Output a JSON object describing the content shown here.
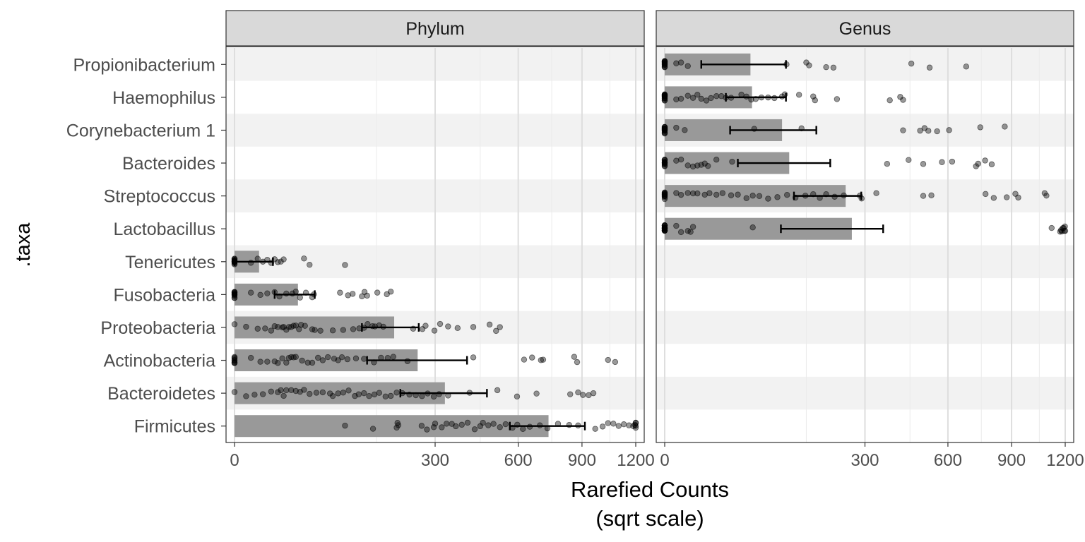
{
  "chart_data": {
    "type": "bar",
    "facet": "horizontal bar chart with jittered points and error bars",
    "xlabel": [
      "Rarefied Counts",
      "(sqrt scale)"
    ],
    "ylabel": ".taxa",
    "x_scale": "sqrt",
    "xlim": [
      0,
      1200
    ],
    "x_ticks": [
      0,
      300,
      600,
      900,
      1200
    ],
    "x_tick_labels": [
      "0",
      "300",
      "600",
      "900",
      "1200"
    ],
    "categories": [
      "Propionibacterium",
      "Haemophilus",
      "Corynebacterium 1",
      "Bacteroides",
      "Streptococcus",
      "Lactobacillus",
      "Tenericutes",
      "Fusobacteria",
      "Proteobacteria",
      "Actinobacteria",
      "Bacteroidetes",
      "Firmicutes"
    ],
    "panels": [
      {
        "name": "Phylum",
        "bars": [
          {
            "taxon": "Tenericutes",
            "mean": 4.5,
            "err": [
              0,
              11
            ],
            "points": [
              0,
              0,
              0,
              0,
              0,
              0,
              0,
              0,
              0,
              0,
              0,
              0,
              2,
              4,
              6,
              8,
              10,
              12,
              14,
              16,
              18,
              36,
              42,
              91
            ]
          },
          {
            "taxon": "Fusobacteria",
            "mean": 30,
            "err": [
              12,
              48
            ],
            "points": [
              0,
              0,
              0,
              0,
              0,
              0,
              0,
              0,
              0,
              0,
              0,
              2,
              5,
              8,
              12,
              15,
              20,
              25,
              28,
              32,
              38,
              45,
              47,
              83,
              96,
              104,
              121,
              131,
              126,
              152,
              173,
              182
            ]
          },
          {
            "taxon": "Proteobacteria",
            "mean": 190,
            "err": [
              121,
              253
            ],
            "points": [
              0,
              1,
              4,
              7,
              10,
              12,
              14,
              17,
              18,
              20,
              22,
              24,
              26,
              28,
              31,
              33,
              37,
              45,
              48,
              55,
              72,
              88,
              105,
              116,
              125,
              132,
              142,
              147,
              156,
              165,
              238,
              263,
              272,
              298,
              315,
              340,
              371,
              425,
              485,
              510,
              525
            ]
          },
          {
            "taxon": "Actinobacteria",
            "mean": 250,
            "err": [
              131,
              403
            ],
            "points": [
              0,
              0,
              0,
              0,
              0,
              0,
              0,
              0,
              2,
              5,
              8,
              12,
              14,
              17,
              20,
              22,
              24,
              26,
              28,
              34,
              40,
              45,
              52,
              58,
              65,
              74,
              80,
              86,
              95,
              110,
              125,
              145,
              160,
              175,
              188,
              223,
              425,
              625,
              660,
              700,
              710,
              860,
              875,
              1040,
              1080
            ]
          },
          {
            "taxon": "Bacteroidetes",
            "mean": 330,
            "err": [
              205,
              475
            ],
            "points": [
              0,
              1,
              3,
              6,
              10,
              14,
              16,
              18,
              20,
              24,
              28,
              32,
              36,
              42,
              50,
              58,
              68,
              72,
              80,
              88,
              97,
              108,
              115,
              125,
              135,
              146,
              156,
              170,
              182,
              196,
              210,
              228,
              245,
              262,
              278,
              296,
              312,
              340,
              412,
              515,
              595,
              680,
              840,
              880,
              905,
              935,
              960
            ]
          },
          {
            "taxon": "Firmicutes",
            "mean": 735,
            "err": [
              565,
              915
            ],
            "points": [
              91,
              143,
              196,
              198,
              200,
              261,
              276,
              296,
              300,
              320,
              335,
              352,
              365,
              385,
              405,
              430,
              450,
              460,
              480,
              500,
              525,
              548,
              576,
              596,
              620,
              650,
              695,
              730,
              780,
              835,
              880,
              970,
              1010,
              1040,
              1070,
              1100,
              1130,
              1160,
              1185,
              1195,
              1200,
              1200,
              1200,
              1200
            ]
          }
        ]
      },
      {
        "name": "Genus",
        "bars": [
          {
            "taxon": "Propionibacterium",
            "mean": 55,
            "err": [
              10,
              110
            ],
            "points": [
              0,
              0,
              0,
              0,
              0,
              0,
              0,
              0,
              0,
              0,
              0,
              0,
              0,
              1,
              2,
              4,
              111,
              150,
              156,
              195,
              213,
              455,
              525,
              680
            ]
          },
          {
            "taxon": "Haemophilus",
            "mean": 57,
            "err": [
              28,
              110
            ],
            "points": [
              0,
              0,
              0,
              0,
              0,
              0,
              0,
              0,
              0,
              0,
              0,
              0,
              0,
              1,
              2,
              4,
              6,
              8,
              10,
              13,
              16,
              20,
              24,
              28,
              33,
              44,
              50,
              56,
              62,
              70,
              80,
              90,
              103,
              108,
              135,
              165,
              169,
              222,
              379,
              415,
              425
            ]
          },
          {
            "taxon": "Corynebacterium 1",
            "mean": 103,
            "err": [
              32,
              172
            ],
            "points": [
              0,
              0,
              0,
              0,
              0,
              0,
              0,
              0,
              0,
              0,
              0,
              0,
              0,
              0,
              0,
              1,
              3,
              60,
              140,
              425,
              488,
              505,
              520,
              555,
              605,
              745,
              865
            ]
          },
          {
            "taxon": "Bacteroides",
            "mean": 116,
            "err": [
              40,
              205
            ],
            "points": [
              0,
              0,
              0,
              0,
              0,
              0,
              0,
              0,
              0,
              0,
              0,
              1,
              2,
              4,
              6,
              8,
              10,
              12,
              14,
              20,
              34,
              370,
              445,
              500,
              575,
              618,
              725,
              735,
              768,
              800
            ]
          },
          {
            "taxon": "Streptococcus",
            "mean": 245,
            "err": [
              125,
              289
            ],
            "points": [
              0,
              0,
              0,
              0,
              0,
              0,
              0,
              0,
              0,
              0,
              0,
              1,
              2,
              4,
              6,
              8,
              12,
              15,
              20,
              25,
              33,
              40,
              50,
              58,
              67,
              80,
              95,
              112,
              128,
              148,
              165,
              180,
              195,
              216,
              240,
              285,
              290,
              335,
              500,
              532,
              770,
              810,
              875,
              920,
              935,
              1080,
              1090
            ]
          },
          {
            "taxon": "Lactobacillus",
            "mean": 262,
            "err": [
              101,
              357
            ],
            "points": [
              0,
              0,
              0,
              0,
              0,
              0,
              0,
              0,
              0,
              0,
              0,
              0,
              0,
              0,
              0,
              0,
              0,
              1,
              2,
              4,
              5,
              6,
              58,
              1120,
              1170,
              1175,
              1180,
              1185,
              1190,
              1195,
              1198,
              1200
            ]
          }
        ]
      }
    ]
  }
}
